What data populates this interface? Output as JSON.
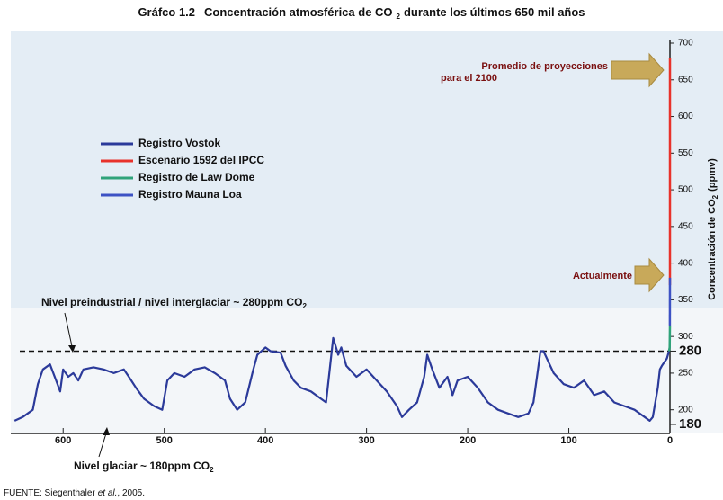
{
  "chart_data": {
    "type": "line",
    "title": {
      "prefix": "Gráfco 1.2",
      "main": "Concentración atmosférica de CO",
      "sub": "2",
      "rest": "durante los últimos 650 mil años"
    },
    "y_label": {
      "main": "Concentración de CO",
      "sub": "2",
      "rest": "(ppmv)"
    },
    "xlim": [
      650,
      0
    ],
    "xticks": [
      600,
      500,
      400,
      300,
      200,
      100,
      0
    ],
    "ylim": [
      180,
      700
    ],
    "yticks": [
      200,
      250,
      300,
      350,
      400,
      450,
      500,
      550,
      600,
      650,
      700
    ],
    "highlight_ticks": [
      280,
      180
    ],
    "reference_line": 280,
    "legend_position": "upper left",
    "series": [
      {
        "name": "Registro Vostok",
        "color": "#2b3a9a",
        "x": [
          648,
          640,
          630,
          625,
          620,
          613,
          607,
          603,
          600,
          595,
          590,
          585,
          580,
          570,
          560,
          550,
          540,
          535,
          528,
          520,
          510,
          502,
          497,
          490,
          480,
          470,
          460,
          450,
          440,
          435,
          428,
          420,
          412,
          408,
          400,
          395,
          385,
          380,
          372,
          365,
          355,
          345,
          340,
          336,
          333,
          328,
          325,
          320,
          310,
          300,
          290,
          280,
          270,
          265,
          258,
          250,
          243,
          240,
          235,
          228,
          220,
          215,
          210,
          200,
          190,
          180,
          170,
          160,
          150,
          140,
          135,
          130,
          128,
          125,
          120,
          115,
          105,
          95,
          85,
          75,
          65,
          55,
          45,
          35,
          25,
          20,
          17,
          12,
          10,
          8,
          3,
          1
        ],
        "values": [
          185,
          190,
          200,
          235,
          255,
          262,
          240,
          225,
          255,
          245,
          250,
          240,
          255,
          258,
          255,
          250,
          255,
          245,
          230,
          215,
          205,
          200,
          240,
          250,
          245,
          255,
          258,
          250,
          240,
          215,
          200,
          210,
          255,
          275,
          285,
          280,
          278,
          260,
          240,
          230,
          225,
          215,
          210,
          260,
          298,
          275,
          285,
          260,
          245,
          255,
          240,
          225,
          205,
          190,
          200,
          210,
          245,
          275,
          255,
          230,
          245,
          220,
          240,
          245,
          230,
          210,
          200,
          195,
          190,
          195,
          210,
          260,
          280,
          280,
          265,
          250,
          235,
          230,
          240,
          220,
          225,
          210,
          205,
          200,
          190,
          185,
          190,
          230,
          255,
          260,
          270,
          280
        ]
      },
      {
        "name": "Escenario 1592 del IPCC",
        "color": "#e8322b",
        "x": [
          0,
          0
        ],
        "values": [
          370,
          680
        ]
      },
      {
        "name": "Registro de Law Dome",
        "color": "#2fa37a",
        "x": [
          1,
          0.3,
          0
        ],
        "values": [
          280,
          285,
          315
        ]
      },
      {
        "name": "Registro Mauna Loa",
        "color": "#3d52c4",
        "x": [
          0.05,
          0
        ],
        "values": [
          315,
          380
        ]
      }
    ],
    "annotations": {
      "projection": [
        "Promedio de proyecciones",
        "para el 2100"
      ],
      "current": "Actualmente",
      "preindustrial": {
        "main": "Nivel preindustrial / nivel interglaciar  ~  280ppm CO",
        "sub": "2"
      },
      "glacial": {
        "main": "Nivel glaciar  ~  180ppm CO",
        "sub": "2"
      }
    },
    "source": {
      "main": "FUENTE: Siegenthaler",
      "italic": "et al.",
      "rest": ", 2005."
    }
  }
}
